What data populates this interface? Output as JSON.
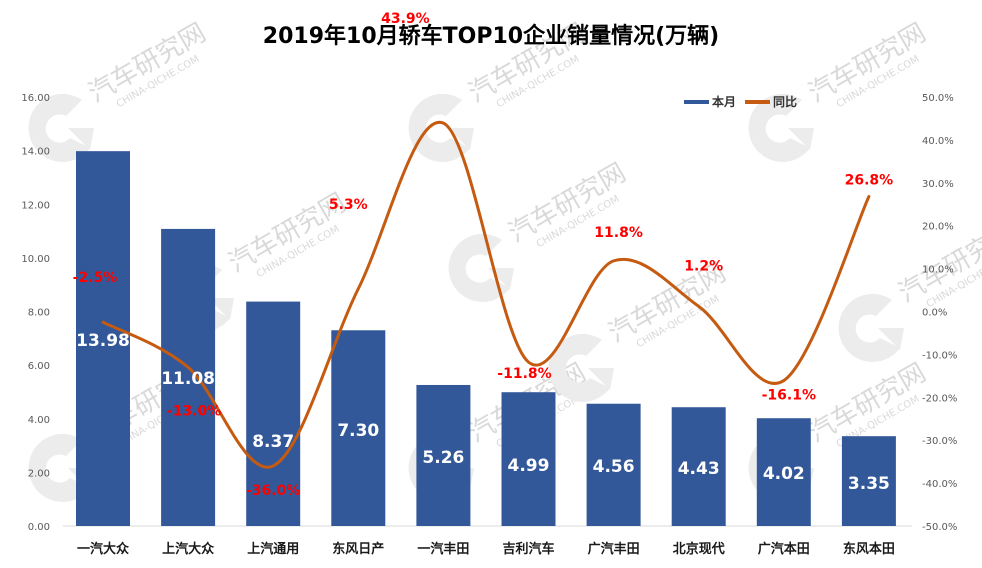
{
  "chart_data": {
    "type": "bar",
    "title": "2019年10月轿车TOP10企业销量情况(万辆)",
    "categories": [
      "一汽大众",
      "上汽大众",
      "上汽通用",
      "东风日产",
      "一汽丰田",
      "吉利汽车",
      "广汽丰田",
      "北京现代",
      "广汽本田",
      "东风本田"
    ],
    "series": [
      {
        "name": "本月",
        "type": "bar",
        "axis": "left",
        "color": "#335899",
        "values": [
          13.98,
          11.08,
          8.37,
          7.3,
          5.26,
          4.99,
          4.56,
          4.43,
          4.02,
          3.35
        ],
        "labels": [
          "13.98",
          "11.08",
          "8.37",
          "7.30",
          "5.26",
          "4.99",
          "4.56",
          "4.43",
          "4.02",
          "3.35"
        ]
      },
      {
        "name": "同比",
        "type": "line",
        "smooth": true,
        "axis": "right",
        "color": "#c55a11",
        "values": [
          -2.5,
          -13.0,
          -36.0,
          5.3,
          43.9,
          -11.8,
          11.8,
          1.2,
          -16.1,
          26.8
        ],
        "labels": [
          "-2.5%",
          "-13.0%",
          "-36.0%",
          "5.3%",
          "43.9%",
          "-11.8%",
          "11.8%",
          "1.2%",
          "-16.1%",
          "26.8%"
        ]
      }
    ],
    "y_left": {
      "range": [
        0,
        16
      ],
      "ticks": [
        "0.00",
        "2.00",
        "4.00",
        "6.00",
        "8.00",
        "10.00",
        "12.00",
        "14.00",
        "16.00"
      ]
    },
    "y_right": {
      "range": [
        -50,
        50
      ],
      "ticks": [
        "-50.0%",
        "-40.0%",
        "-30.0%",
        "-20.0%",
        "-10.0%",
        "0.0%",
        "10.0%",
        "20.0%",
        "30.0%",
        "40.0%",
        "50.0%"
      ]
    },
    "xlabel": "",
    "ylabel": "",
    "grid": false,
    "legend": {
      "position": "top-right",
      "entries": [
        "本月",
        "同比"
      ]
    },
    "label_color": "#ff0000"
  },
  "watermark": {
    "text_cn": "汽车研究网",
    "text_en": "CHINA-QICHE.COM"
  }
}
